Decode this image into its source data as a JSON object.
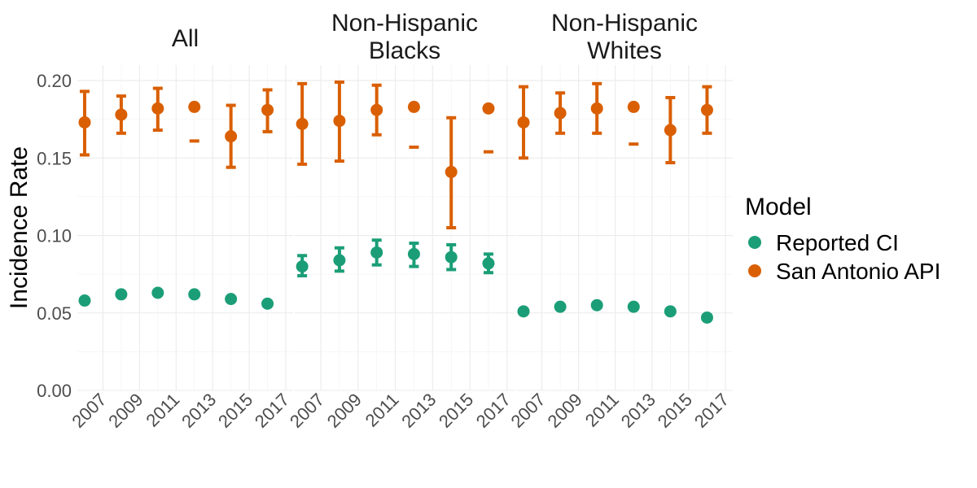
{
  "chart_data": {
    "type": "scatter",
    "ylabel": "Incidence Rate",
    "ylim": [
      0,
      0.21
    ],
    "yticks": [
      0.0,
      0.05,
      0.1,
      0.15,
      0.2
    ],
    "ytick_labels": [
      "0.00",
      "0.05",
      "0.10",
      "0.15",
      "0.20"
    ],
    "xlim": [
      2005.6,
      2017.4
    ],
    "xticks": [
      2007,
      2009,
      2011,
      2013,
      2015,
      2017
    ],
    "xtick_labels": [
      "2007",
      "2009",
      "2011",
      "2013",
      "2015",
      "2017"
    ],
    "grid": true,
    "legend": {
      "title": "Model",
      "position": "right",
      "entries": [
        {
          "name": "Reported CI",
          "color": "#1b9e77"
        },
        {
          "name": "San Antonio API",
          "color": "#d95f02"
        }
      ]
    },
    "panels": [
      {
        "title": "All",
        "series": [
          {
            "name": "Reported CI",
            "color": "#1b9e77",
            "points": [
              {
                "x": 2006,
                "y": 0.058,
                "lo": 0.057,
                "hi": 0.059
              },
              {
                "x": 2008,
                "y": 0.062,
                "lo": 0.061,
                "hi": 0.063
              },
              {
                "x": 2010,
                "y": 0.063,
                "lo": 0.062,
                "hi": 0.064
              },
              {
                "x": 2012,
                "y": 0.062,
                "lo": 0.061,
                "hi": 0.063
              },
              {
                "x": 2014,
                "y": 0.059,
                "lo": 0.058,
                "hi": 0.06
              },
              {
                "x": 2016,
                "y": 0.056,
                "lo": 0.055,
                "hi": 0.057
              }
            ]
          },
          {
            "name": "San Antonio API",
            "color": "#d95f02",
            "points": [
              {
                "x": 2006,
                "y": 0.173,
                "lo": 0.152,
                "hi": 0.193
              },
              {
                "x": 2008,
                "y": 0.178,
                "lo": 0.166,
                "hi": 0.19
              },
              {
                "x": 2010,
                "y": 0.182,
                "lo": 0.168,
                "hi": 0.195
              },
              {
                "x": 2012,
                "y": 0.183,
                "lo": 0.161,
                "hi": null
              },
              {
                "x": 2014,
                "y": 0.164,
                "lo": 0.144,
                "hi": 0.184
              },
              {
                "x": 2016,
                "y": 0.181,
                "lo": 0.167,
                "hi": 0.194
              }
            ]
          }
        ]
      },
      {
        "title": "Non-Hispanic\nBlacks",
        "series": [
          {
            "name": "Reported CI",
            "color": "#1b9e77",
            "points": [
              {
                "x": 2006,
                "y": 0.08,
                "lo": 0.074,
                "hi": 0.087
              },
              {
                "x": 2008,
                "y": 0.084,
                "lo": 0.077,
                "hi": 0.092
              },
              {
                "x": 2010,
                "y": 0.089,
                "lo": 0.081,
                "hi": 0.097
              },
              {
                "x": 2012,
                "y": 0.088,
                "lo": 0.08,
                "hi": 0.095
              },
              {
                "x": 2014,
                "y": 0.086,
                "lo": 0.078,
                "hi": 0.094
              },
              {
                "x": 2016,
                "y": 0.082,
                "lo": 0.076,
                "hi": 0.088
              }
            ]
          },
          {
            "name": "San Antonio API",
            "color": "#d95f02",
            "points": [
              {
                "x": 2006,
                "y": 0.172,
                "lo": 0.146,
                "hi": 0.198
              },
              {
                "x": 2008,
                "y": 0.174,
                "lo": 0.148,
                "hi": 0.199
              },
              {
                "x": 2010,
                "y": 0.181,
                "lo": 0.165,
                "hi": 0.197
              },
              {
                "x": 2012,
                "y": 0.183,
                "lo": 0.157,
                "hi": null
              },
              {
                "x": 2014,
                "y": 0.141,
                "lo": 0.105,
                "hi": 0.176
              },
              {
                "x": 2016,
                "y": 0.182,
                "lo": 0.154,
                "hi": null
              }
            ]
          }
        ]
      },
      {
        "title": "Non-Hispanic\nWhites",
        "series": [
          {
            "name": "Reported CI",
            "color": "#1b9e77",
            "points": [
              {
                "x": 2006,
                "y": 0.051,
                "lo": 0.05,
                "hi": 0.052
              },
              {
                "x": 2008,
                "y": 0.054,
                "lo": 0.053,
                "hi": 0.055
              },
              {
                "x": 2010,
                "y": 0.055,
                "lo": 0.054,
                "hi": 0.056
              },
              {
                "x": 2012,
                "y": 0.054,
                "lo": 0.053,
                "hi": 0.055
              },
              {
                "x": 2014,
                "y": 0.051,
                "lo": 0.05,
                "hi": 0.052
              },
              {
                "x": 2016,
                "y": 0.047,
                "lo": 0.046,
                "hi": 0.048
              }
            ]
          },
          {
            "name": "San Antonio API",
            "color": "#d95f02",
            "points": [
              {
                "x": 2006,
                "y": 0.173,
                "lo": 0.15,
                "hi": 0.196
              },
              {
                "x": 2008,
                "y": 0.179,
                "lo": 0.166,
                "hi": 0.192
              },
              {
                "x": 2010,
                "y": 0.182,
                "lo": 0.166,
                "hi": 0.198
              },
              {
                "x": 2012,
                "y": 0.183,
                "lo": 0.159,
                "hi": null
              },
              {
                "x": 2014,
                "y": 0.168,
                "lo": 0.147,
                "hi": 0.189
              },
              {
                "x": 2016,
                "y": 0.181,
                "lo": 0.166,
                "hi": 0.196
              }
            ]
          }
        ]
      }
    ]
  }
}
